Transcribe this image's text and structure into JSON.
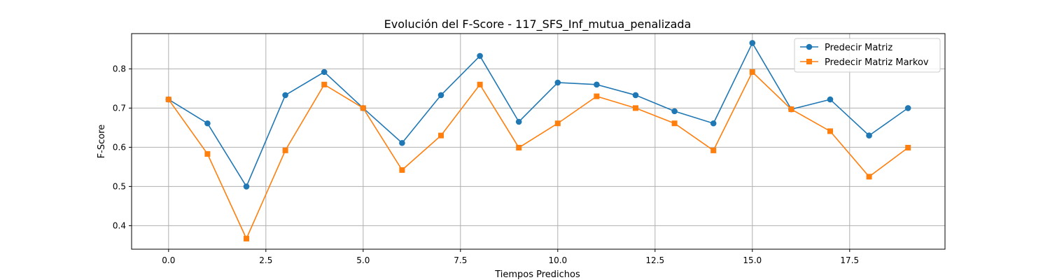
{
  "chart_data": {
    "type": "line",
    "title": "Evolución del F-Score - 117_SFS_Inf_mutua_penalizada",
    "xlabel": "Tiempos Predichos",
    "ylabel": "F-Score",
    "xlim": [
      -0.95,
      19.95
    ],
    "ylim": [
      0.34,
      0.89
    ],
    "xticks": [
      0.0,
      2.5,
      5.0,
      7.5,
      10.0,
      12.5,
      15.0,
      17.5
    ],
    "xtick_labels": [
      "0.0",
      "2.5",
      "5.0",
      "7.5",
      "10.0",
      "12.5",
      "15.0",
      "17.5"
    ],
    "yticks": [
      0.4,
      0.5,
      0.6,
      0.7,
      0.8
    ],
    "ytick_labels": [
      "0.4",
      "0.5",
      "0.6",
      "0.7",
      "0.8"
    ],
    "grid": true,
    "legend_position": "top-right",
    "x": [
      0,
      1,
      2,
      3,
      4,
      5,
      6,
      7,
      8,
      9,
      10,
      11,
      12,
      13,
      14,
      15,
      16,
      17,
      18,
      19
    ],
    "series": [
      {
        "name": "Predecir Matriz",
        "color": "#1f77b4",
        "marker": "circle",
        "values": [
          0.722,
          0.661,
          0.5,
          0.733,
          0.792,
          0.7,
          0.611,
          0.733,
          0.833,
          0.665,
          0.765,
          0.76,
          0.733,
          0.692,
          0.661,
          0.866,
          0.697,
          0.722,
          0.63,
          0.7
        ]
      },
      {
        "name": "Predecir Matriz Markov",
        "color": "#ff7f0e",
        "marker": "square",
        "values": [
          0.722,
          0.583,
          0.367,
          0.592,
          0.76,
          0.7,
          0.542,
          0.63,
          0.76,
          0.599,
          0.661,
          0.73,
          0.7,
          0.661,
          0.592,
          0.792,
          0.697,
          0.641,
          0.525,
          0.599
        ]
      }
    ]
  }
}
